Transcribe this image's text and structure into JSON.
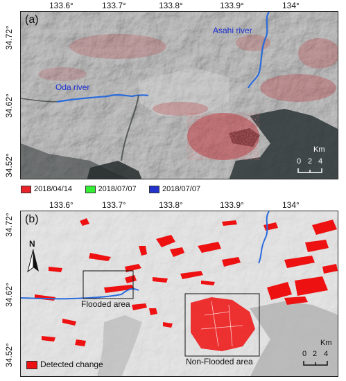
{
  "x_ticks": [
    "133.6°",
    "133.7°",
    "133.8°",
    "133.9°",
    "134°"
  ],
  "y_ticks": [
    "34.72°",
    "34.62°",
    "34.52°"
  ],
  "panel_a": {
    "label": "(a)",
    "rivers": [
      "Oda river",
      "Asahi river"
    ],
    "scale": {
      "unit": "Km",
      "values": [
        "0",
        "2",
        "4"
      ]
    }
  },
  "legend_a": [
    {
      "label": "2018/04/14",
      "color": "#e8242a"
    },
    {
      "label": "2018/07/07",
      "color": "#33ee33"
    },
    {
      "label": "2018/07/07",
      "color": "#2233cc"
    }
  ],
  "panel_b": {
    "label": "(b)",
    "north": "N",
    "box_labels": [
      "Flooded area",
      "Non-Flooded area"
    ],
    "legend": {
      "label": "Detected change",
      "color": "#ee1111"
    },
    "scale": {
      "unit": "Km",
      "values": [
        "0",
        "2",
        "4"
      ]
    }
  },
  "colors": {
    "river": "#2a6bdc",
    "change": "#ee1111",
    "urban": "#b82a30"
  }
}
